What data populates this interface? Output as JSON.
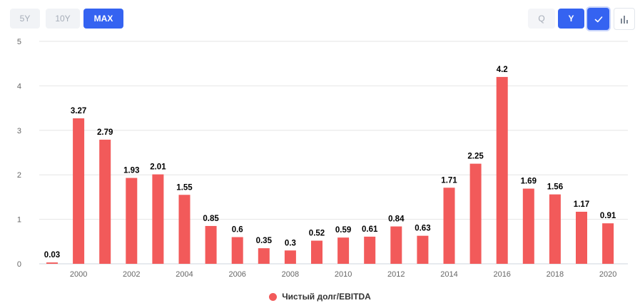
{
  "toolbar": {
    "range_buttons": [
      {
        "label": "5Y",
        "active": false
      },
      {
        "label": "10Y",
        "active": false
      },
      {
        "label": "MAX",
        "active": true
      }
    ],
    "period_buttons": [
      {
        "label": "Q",
        "active": false
      },
      {
        "label": "Y",
        "active": true
      }
    ],
    "check_icon": "check-icon",
    "chart_type_icon": "bar-chart-icon"
  },
  "colors": {
    "bar": "#f25a5a",
    "accent": "#3563f1",
    "grid": "#e6e6e6"
  },
  "legend": {
    "label": "Чистый долг/EBITDA"
  },
  "chart_data": {
    "type": "bar",
    "categories": [
      "1999",
      "2000",
      "2001",
      "2002",
      "2003",
      "2004",
      "2005",
      "2006",
      "2007",
      "2008",
      "2009",
      "2010",
      "2011",
      "2012",
      "2013",
      "2014",
      "2015",
      "2016",
      "2017",
      "2018",
      "2019",
      "2020"
    ],
    "x_tick_labels": [
      "2000",
      "2002",
      "2004",
      "2006",
      "2008",
      "2010",
      "2012",
      "2014",
      "2016",
      "2018",
      "2020"
    ],
    "series": [
      {
        "name": "Чистый долг/EBITDA",
        "values": [
          0.03,
          3.27,
          2.79,
          1.93,
          2.01,
          1.55,
          0.85,
          0.6,
          0.35,
          0.3,
          0.52,
          0.59,
          0.61,
          0.84,
          0.63,
          1.71,
          2.25,
          4.2,
          1.69,
          1.56,
          1.17,
          0.91
        ],
        "labels": [
          "0.03",
          "3.27",
          "2.79",
          "1.93",
          "2.01",
          "1.55",
          "0.85",
          "0.6",
          "0.35",
          "0.3",
          "0.52",
          "0.59",
          "0.61",
          "0.84",
          "0.63",
          "1.71",
          "2.25",
          "4.2",
          "1.69",
          "1.56",
          "1.17",
          "0.91"
        ]
      }
    ],
    "y_ticks": [
      "0",
      "1",
      "2",
      "3",
      "4",
      "5"
    ],
    "ylim": [
      0,
      5
    ],
    "grid": true,
    "legend_position": "bottom-center"
  }
}
